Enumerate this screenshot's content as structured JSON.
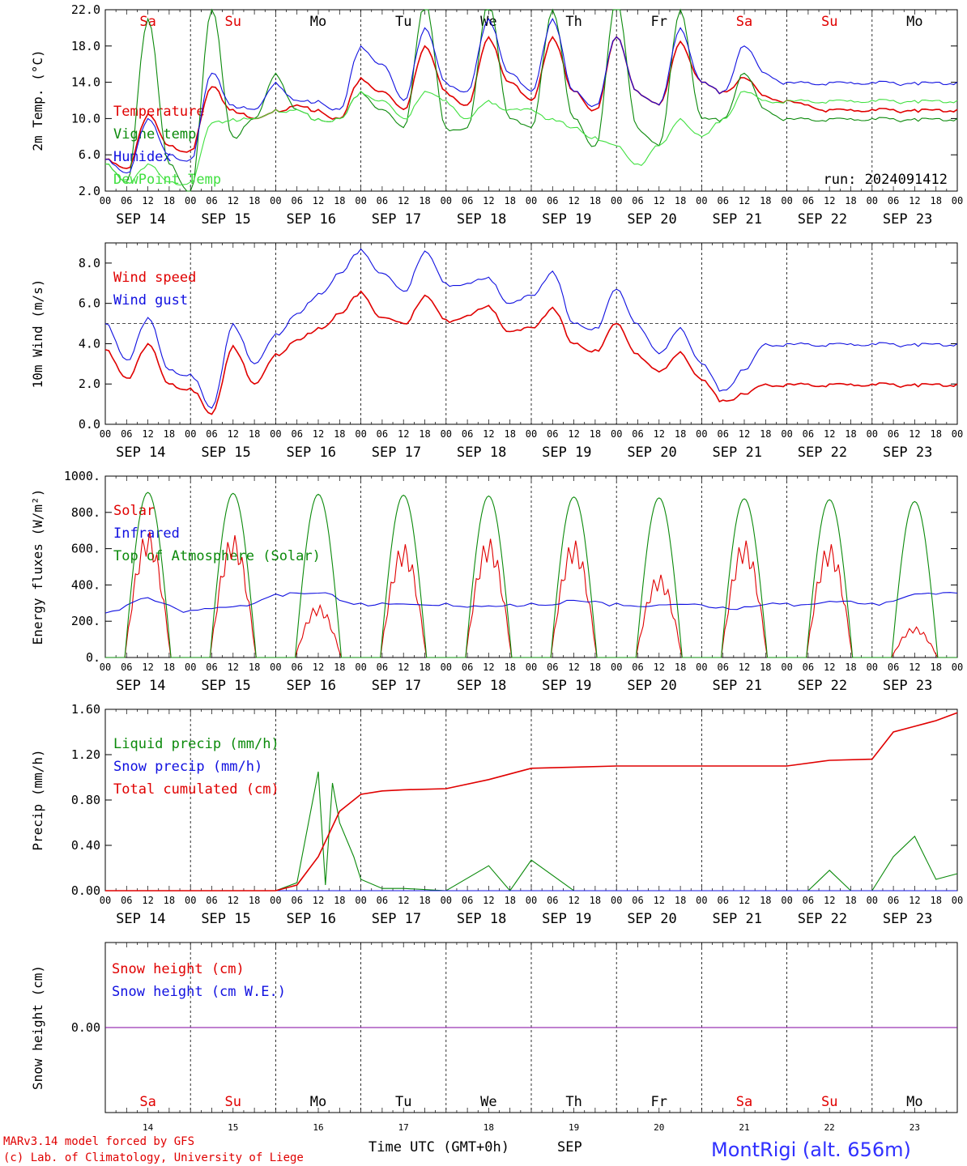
{
  "run_label": "run: 2024091412",
  "day_names": [
    "Sa",
    "Su",
    "Mo",
    "Tu",
    "We",
    "Th",
    "Fr",
    "Sa",
    "Su",
    "Mo"
  ],
  "weekend_flags": [
    true,
    true,
    false,
    false,
    false,
    false,
    false,
    true,
    true,
    false
  ],
  "date_labels": [
    "SEP 14",
    "SEP 15",
    "SEP 16",
    "SEP 17",
    "SEP 18",
    "SEP 19",
    "SEP 20",
    "SEP 21",
    "SEP 22",
    "SEP 23"
  ],
  "bottom_day_numbers": [
    "14",
    "15",
    "16",
    "17",
    "18",
    "19",
    "20",
    "21",
    "22",
    "23"
  ],
  "hour_ticks": [
    "00",
    "06",
    "12",
    "18"
  ],
  "final_hour_tick": "00",
  "footer": {
    "model_line": "MARv3.14 model forced by GFS",
    "copyright_line": "(c) Lab. of Climatology, University of Liege",
    "xlabel": "Time UTC (GMT+0h)",
    "month": "SEP",
    "station": "MontRigi (alt. 656m)"
  },
  "colors": {
    "red": "#e00000",
    "green": "#0b8a0b",
    "blue": "#1010e0",
    "lightgreen": "#40e040",
    "purple": "#8000a0"
  },
  "chart_data": [
    {
      "type": "line",
      "ylabel": "2m Temp. (°C)",
      "ylim": [
        2,
        22
      ],
      "yticks": [
        "2.0",
        "6.0",
        "10.0",
        "14.0",
        "18.0",
        "22.0"
      ],
      "x_unit": "hours since SEP 14 00 UTC",
      "legend": [
        "Temperature",
        "Vigne temp",
        "Humidex",
        "DewPoint Temp"
      ],
      "series": [
        {
          "name": "Temperature",
          "color": "red",
          "x": [
            0,
            6,
            12,
            18,
            24,
            30,
            36,
            42,
            48,
            54,
            60,
            66,
            72,
            78,
            84,
            90,
            96,
            102,
            108,
            114,
            120,
            126,
            132,
            138,
            144,
            150,
            156,
            162,
            168,
            174,
            180,
            186,
            192,
            198,
            204,
            210,
            216,
            222,
            228,
            234,
            240
          ],
          "y": [
            5.5,
            4.5,
            10.5,
            7,
            6.5,
            13.5,
            11,
            10,
            11,
            11.5,
            11,
            10,
            14.5,
            13,
            11,
            18,
            13,
            11.5,
            19,
            14,
            12,
            19,
            13,
            11,
            19,
            13,
            11.5,
            18.5,
            14,
            13,
            14.5,
            12.5,
            12,
            11.5,
            11,
            11,
            11,
            11,
            11,
            11,
            11
          ]
        },
        {
          "name": "Vigne temp",
          "color": "green",
          "x": [
            0,
            6,
            12,
            18,
            24,
            30,
            36,
            42,
            48,
            54,
            60,
            66,
            72,
            78,
            84,
            90,
            96,
            102,
            108,
            114,
            120,
            126,
            132,
            138,
            144,
            150,
            156,
            162,
            168,
            174,
            180,
            186,
            192,
            198,
            204,
            210,
            216,
            222,
            228,
            234,
            240
          ],
          "y": [
            5,
            3,
            21,
            5,
            2,
            22,
            8,
            10,
            15,
            11,
            10,
            10,
            13,
            11,
            9,
            23,
            9,
            9,
            23,
            10,
            9,
            22,
            10,
            7,
            23,
            9,
            7,
            22,
            10,
            10,
            15,
            11,
            10,
            10,
            10,
            10,
            10,
            10,
            10,
            10,
            10
          ]
        },
        {
          "name": "Humidex",
          "color": "blue",
          "x": [
            0,
            6,
            12,
            18,
            24,
            30,
            36,
            42,
            48,
            54,
            60,
            66,
            72,
            78,
            84,
            90,
            96,
            102,
            108,
            114,
            120,
            126,
            132,
            138,
            144,
            150,
            156,
            162,
            168,
            174,
            180,
            186,
            192,
            198,
            204,
            210,
            216,
            222,
            228,
            234,
            240
          ],
          "y": [
            5.5,
            4,
            10,
            6,
            5.5,
            15,
            11.5,
            11,
            14,
            12,
            12,
            11,
            18,
            16,
            12,
            20,
            14,
            13,
            21,
            15,
            13,
            21,
            13,
            11.5,
            19,
            13,
            11.5,
            20,
            14,
            13,
            18,
            15,
            14,
            14,
            14,
            14,
            14,
            14,
            14,
            14,
            14
          ]
        },
        {
          "name": "DewPoint Temp",
          "color": "lightgreen",
          "x": [
            0,
            6,
            12,
            18,
            24,
            30,
            36,
            42,
            48,
            54,
            60,
            66,
            72,
            78,
            84,
            90,
            96,
            102,
            108,
            114,
            120,
            126,
            132,
            138,
            144,
            150,
            156,
            162,
            168,
            174,
            180,
            186,
            192,
            198,
            204,
            210,
            216,
            222,
            228,
            234,
            240
          ],
          "y": [
            5,
            3,
            5,
            3,
            3,
            9.5,
            10,
            10,
            11,
            11,
            10,
            10,
            13,
            12,
            10,
            13,
            12,
            10,
            12,
            11,
            11,
            10,
            9,
            8,
            7,
            5,
            7,
            10,
            8,
            10,
            13,
            12,
            12,
            12,
            12,
            12,
            12,
            12,
            12,
            12,
            12
          ]
        }
      ]
    },
    {
      "type": "line",
      "ylabel": "10m Wind (m/s)",
      "ylim": [
        0,
        9
      ],
      "yticks": [
        "0.0",
        "2.0",
        "4.0",
        "6.0",
        "8.0"
      ],
      "reference_line": 5,
      "legend": [
        "Wind speed",
        "Wind gust"
      ],
      "series": [
        {
          "name": "Wind speed",
          "color": "red",
          "x": [
            0,
            6,
            12,
            18,
            24,
            30,
            36,
            42,
            48,
            54,
            60,
            66,
            72,
            78,
            84,
            90,
            96,
            102,
            108,
            114,
            120,
            126,
            132,
            138,
            144,
            150,
            156,
            162,
            168,
            174,
            180,
            186,
            192,
            198,
            204,
            210,
            216,
            222,
            228,
            234,
            240
          ],
          "y": [
            3.7,
            2.3,
            4,
            2,
            1.8,
            0.5,
            3.9,
            2,
            3.5,
            4.2,
            4.8,
            5.5,
            6.6,
            5.3,
            5,
            6.4,
            5.2,
            5.4,
            5.9,
            4.6,
            4.8,
            5.8,
            4,
            3.7,
            5,
            3.5,
            2.6,
            3.6,
            2.2,
            1.2,
            1.5,
            2,
            2,
            2,
            2,
            2,
            2,
            2,
            2,
            2,
            2
          ]
        },
        {
          "name": "Wind gust",
          "color": "blue",
          "x": [
            0,
            6,
            12,
            18,
            24,
            30,
            36,
            42,
            48,
            54,
            60,
            66,
            72,
            78,
            84,
            90,
            96,
            102,
            108,
            114,
            120,
            126,
            132,
            138,
            144,
            150,
            156,
            162,
            168,
            174,
            180,
            186,
            192,
            198,
            204,
            210,
            216,
            222,
            228,
            234,
            240
          ],
          "y": [
            5,
            3.2,
            5.3,
            2.7,
            2.5,
            0.8,
            5,
            3,
            4.5,
            5.5,
            6.5,
            7.5,
            8.7,
            7.5,
            6.6,
            8.6,
            7,
            7,
            7.3,
            6,
            6.4,
            7.6,
            5,
            4.8,
            6.7,
            5,
            3.5,
            4.8,
            3,
            1.7,
            2.7,
            4,
            4,
            4,
            4,
            4,
            4,
            4,
            4,
            4,
            4
          ]
        }
      ]
    },
    {
      "type": "line",
      "ylabel": "Energy fluxes (W/m²)",
      "ylim": [
        0,
        1000
      ],
      "yticks": [
        "0.",
        "200.",
        "400.",
        "600.",
        "800.",
        "1000."
      ],
      "legend": [
        "Solar",
        "Infrared",
        "Top of Atmosphere (Solar)"
      ],
      "series": [
        {
          "name": "Solar",
          "color": "red",
          "daily_peaks": [
            700,
            680,
            290,
            630,
            660,
            650,
            460,
            650,
            630,
            170
          ]
        },
        {
          "name": "Infrared",
          "color": "blue",
          "x": [
            0,
            12,
            24,
            36,
            48,
            60,
            72,
            84,
            96,
            108,
            120,
            132,
            144,
            156,
            168,
            180,
            192,
            204,
            216,
            228,
            240
          ],
          "y": [
            245,
            330,
            260,
            280,
            350,
            355,
            300,
            295,
            300,
            285,
            300,
            315,
            300,
            290,
            290,
            280,
            300,
            310,
            300,
            350,
            355
          ]
        },
        {
          "name": "Top of Atmosphere (Solar)",
          "color": "green",
          "daily_peaks": [
            910,
            905,
            900,
            895,
            890,
            885,
            880,
            875,
            870,
            860
          ]
        }
      ]
    },
    {
      "type": "line",
      "ylabel": "Precip (mm/h)",
      "ylim": [
        0,
        1.6
      ],
      "yticks": [
        "0.00",
        "0.40",
        "0.80",
        "1.20",
        "1.60"
      ],
      "legend": [
        "Liquid precip (mm/h)",
        "Snow precip (mm/h)",
        "Total cumulated (cm)"
      ],
      "series": [
        {
          "name": "Liquid precip (mm/h)",
          "color": "green",
          "x": [
            0,
            48,
            54,
            60,
            62,
            64,
            66,
            70,
            72,
            78,
            84,
            96,
            108,
            114,
            120,
            132,
            144,
            156,
            168,
            180,
            186,
            192,
            198,
            204,
            210,
            216,
            222,
            228,
            234,
            240
          ],
          "y": [
            0,
            0,
            0.07,
            1.05,
            0.05,
            0.95,
            0.6,
            0.3,
            0.1,
            0.02,
            0.02,
            0,
            0.22,
            0,
            0.27,
            0,
            0,
            0,
            0,
            0,
            0,
            0,
            0,
            0.18,
            0,
            0,
            0.3,
            0.48,
            0.1,
            0.15
          ]
        },
        {
          "name": "Snow precip (mm/h)",
          "color": "blue",
          "x": [
            0,
            240
          ],
          "y": [
            0,
            0
          ]
        },
        {
          "name": "Total cumulated (cm)",
          "color": "red",
          "x": [
            0,
            48,
            54,
            60,
            66,
            72,
            78,
            84,
            96,
            108,
            120,
            132,
            144,
            156,
            168,
            180,
            192,
            204,
            216,
            222,
            228,
            234,
            240
          ],
          "y": [
            0,
            0,
            0.05,
            0.3,
            0.7,
            0.85,
            0.88,
            0.89,
            0.9,
            0.98,
            1.08,
            1.09,
            1.1,
            1.1,
            1.1,
            1.1,
            1.1,
            1.15,
            1.16,
            1.4,
            1.45,
            1.5,
            1.57
          ]
        }
      ]
    },
    {
      "type": "line",
      "ylabel": "Snow height (cm)",
      "ylim": [
        -1,
        1
      ],
      "yticks": [
        "0.00"
      ],
      "legend": [
        "Snow height (cm)",
        "Snow height (cm W.E.)"
      ],
      "series": [
        {
          "name": "Snow height (cm)",
          "color": "red",
          "x": [
            0,
            240
          ],
          "y": [
            0,
            0
          ]
        },
        {
          "name": "Snow height (cm W.E.)",
          "color": "blue",
          "x": [
            0,
            240
          ],
          "y": [
            0,
            0
          ]
        }
      ]
    }
  ]
}
